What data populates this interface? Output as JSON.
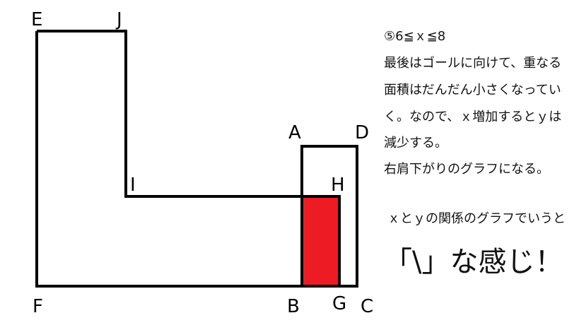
{
  "diagram": {
    "labels": {
      "E": "E",
      "J": "J",
      "I": "I",
      "A": "A",
      "D": "D",
      "H": "H",
      "F": "F",
      "B": "B",
      "G": "G",
      "C": "C"
    },
    "overlap_color": "#ed1c24",
    "line_color": "#000000"
  },
  "notes": {
    "lines": [
      "⑤6≦ｘ≦8",
      "最後はゴールに向けて、重なる",
      "面積はだんだん小さくなってい",
      "く。なので、ｘ増加するとｙは",
      "減少する。",
      "右肩下がりのグラフになる。"
    ],
    "relation": "ｘとｙの関係のグラフでいうと",
    "conclusion": "「\\」な感じ！"
  }
}
